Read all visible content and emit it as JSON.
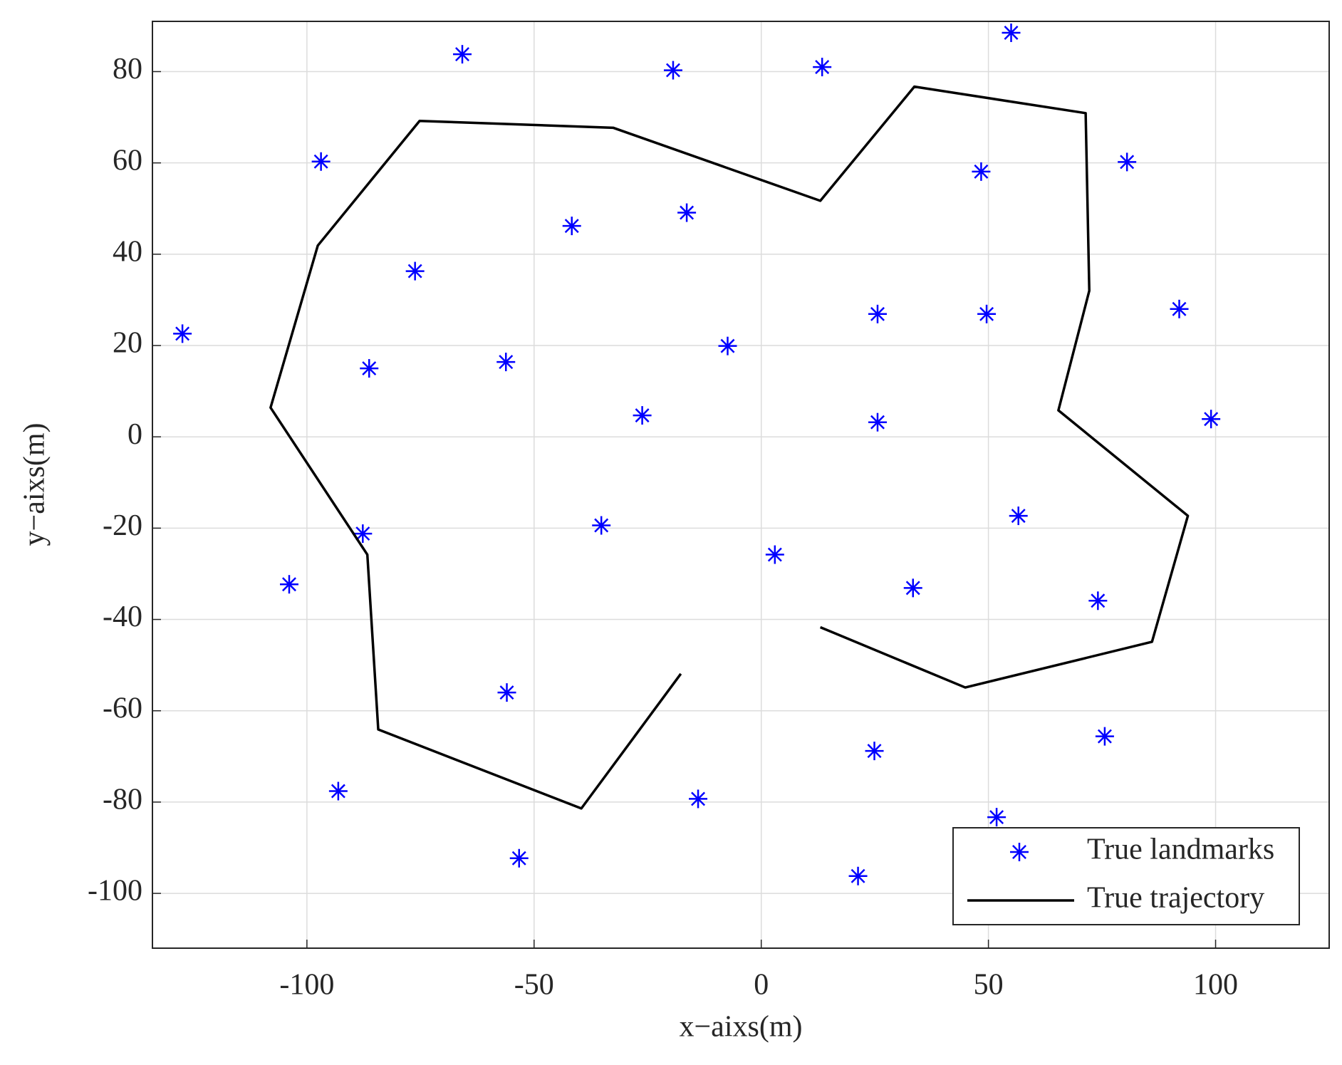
{
  "chart_data": {
    "type": "scatter",
    "xlabel": "x−aixs(m)",
    "ylabel": "y−aixs(m)",
    "xlim": [
      -134,
      125
    ],
    "ylim": [
      -112,
      91
    ],
    "xticks": [
      -100,
      -50,
      0,
      50,
      100
    ],
    "yticks": [
      -100,
      -80,
      -60,
      -40,
      -20,
      0,
      20,
      40,
      60,
      80
    ],
    "grid": true,
    "legend": "lower right",
    "series": [
      {
        "name": "True landmarks",
        "type": "scatter",
        "color": "#0000ff",
        "x": [
          -127.4,
          -96.9,
          -65.8,
          -76.2,
          -86.3,
          -56.2,
          -41.7,
          -19.4,
          -16.4,
          13.4,
          -7.4,
          -26.2,
          55.0,
          48.4,
          80.5,
          25.6,
          49.6,
          92.0,
          25.6,
          99.0,
          -87.7,
          -103.9,
          -35.2,
          3.0,
          56.6,
          33.4,
          74.1,
          -56.0,
          24.9,
          75.6,
          -93.1,
          -13.9,
          51.8,
          -53.3,
          21.3
        ],
        "values": [
          22.6,
          60.3,
          83.8,
          36.3,
          15.0,
          16.4,
          46.2,
          80.3,
          49.1,
          81.0,
          19.9,
          4.7,
          88.5,
          58.1,
          60.2,
          26.9,
          26.9,
          28.0,
          3.2,
          3.9,
          -21.2,
          -32.3,
          -19.4,
          -25.8,
          -17.3,
          -33.1,
          -35.9,
          -56.0,
          -68.8,
          -65.6,
          -77.6,
          -79.3,
          -83.3,
          -92.3,
          -96.2
        ]
      },
      {
        "name": "True trajectory",
        "type": "line",
        "color": "#000000",
        "x": [
          -17.7,
          -39.6,
          -84.3,
          -86.7,
          -108.0,
          -97.6,
          -75.2,
          -32.6,
          13.0,
          33.7,
          71.4,
          72.2,
          65.4,
          93.9,
          86.0,
          44.9,
          13.0
        ],
        "values": [
          -51.9,
          -81.4,
          -64.1,
          -25.8,
          6.4,
          41.9,
          69.2,
          67.7,
          51.7,
          76.7,
          70.9,
          32.0,
          5.8,
          -17.3,
          -44.9,
          -54.9,
          -41.7
        ]
      }
    ]
  }
}
